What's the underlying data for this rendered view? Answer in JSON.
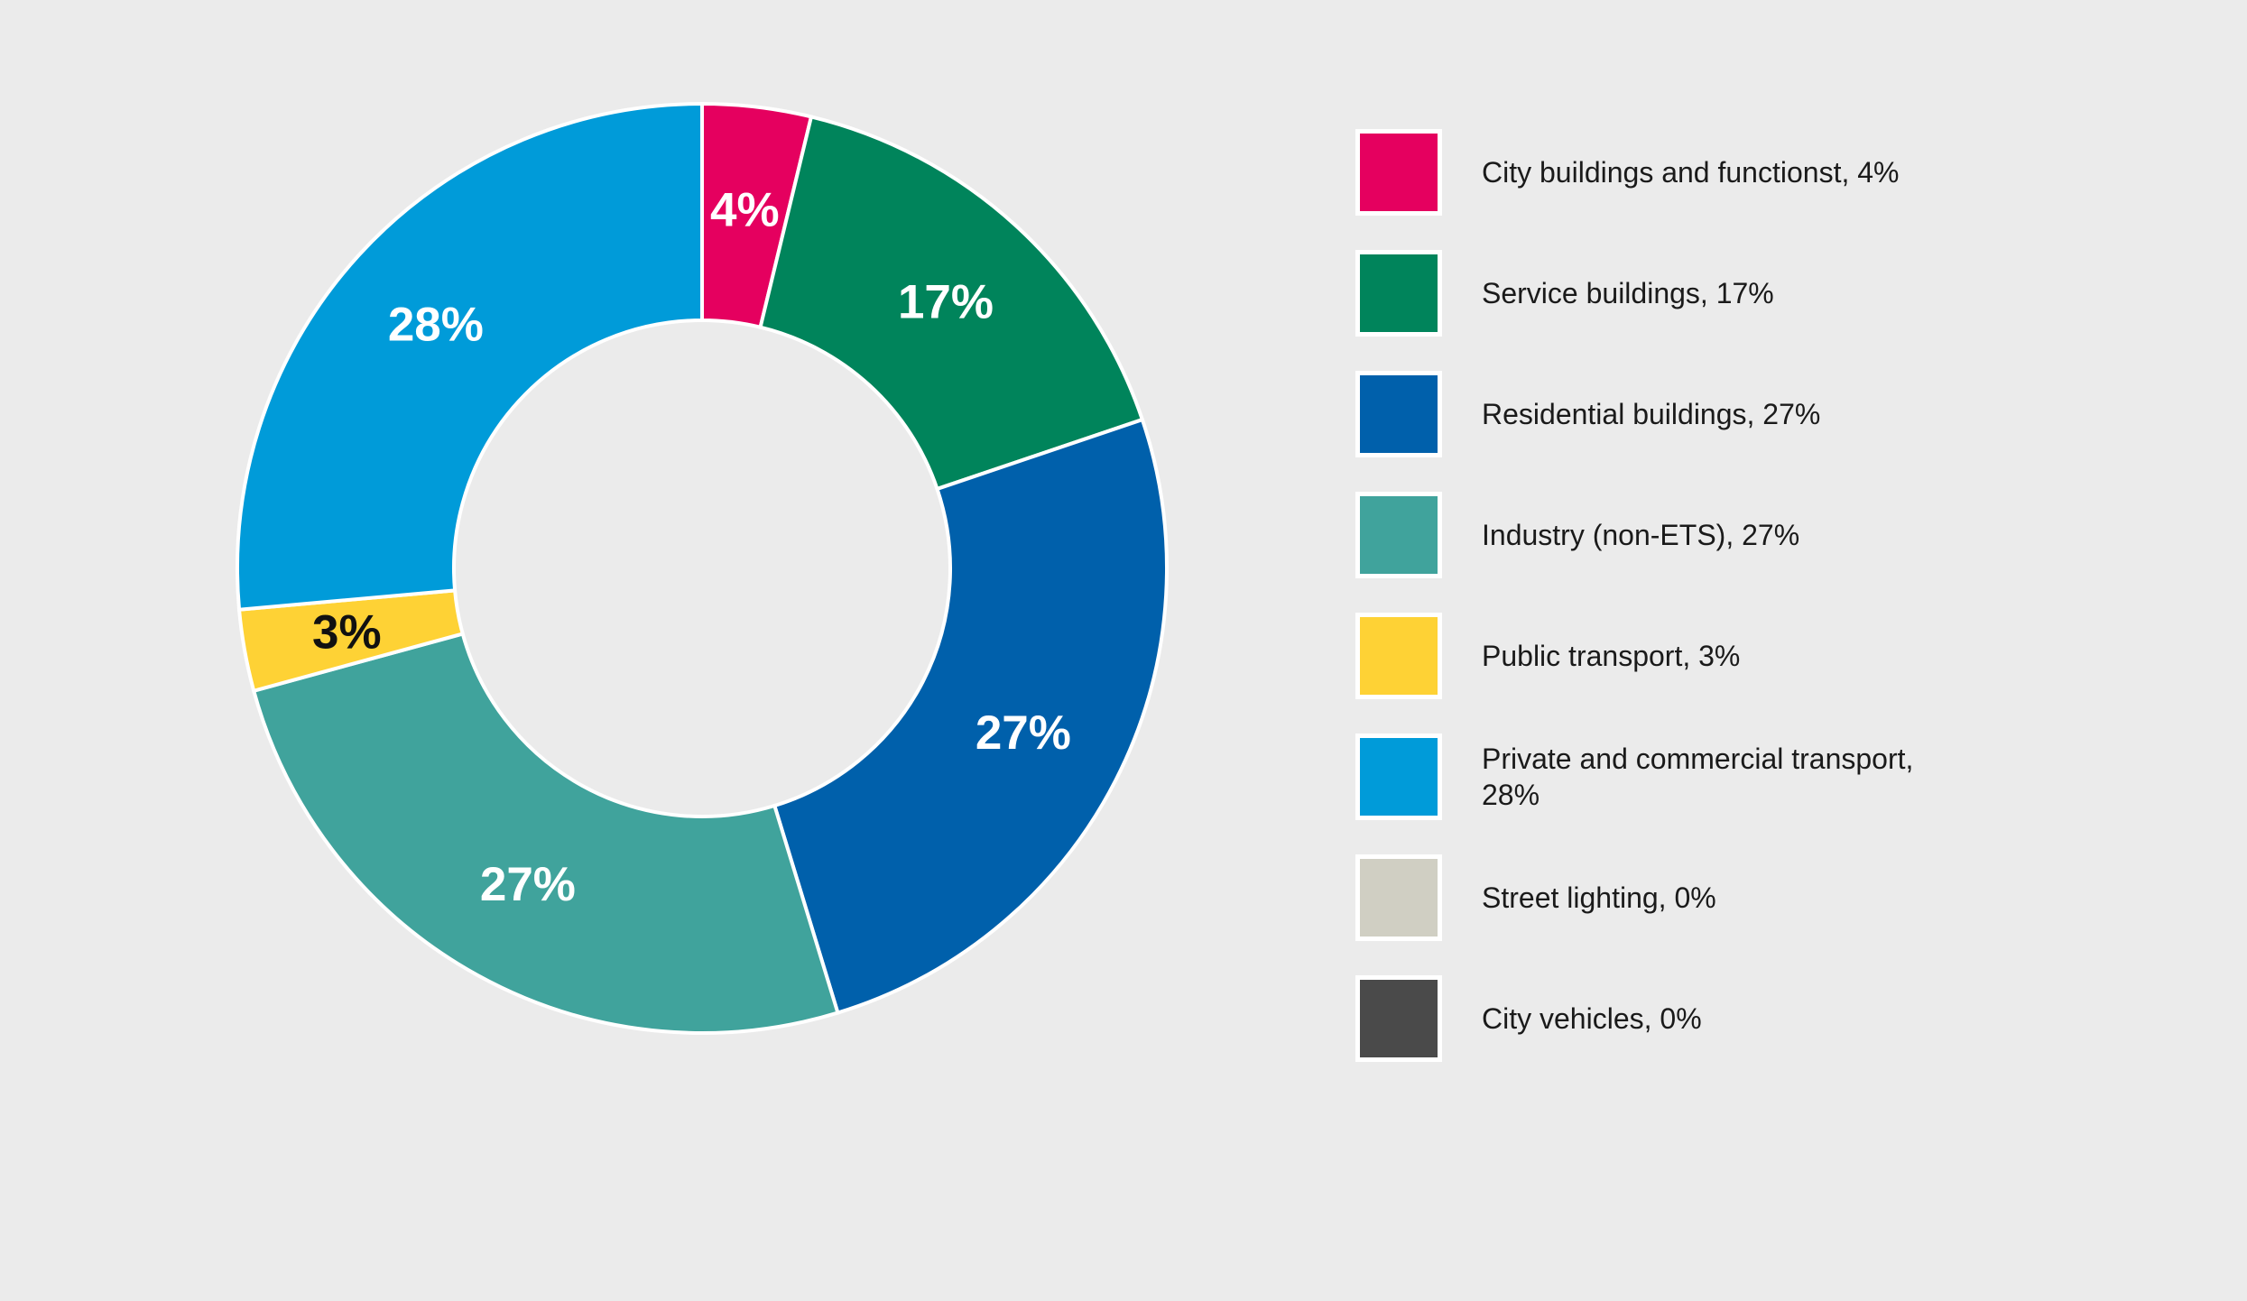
{
  "chart_data": {
    "type": "pie",
    "variant": "donut",
    "title": "",
    "categories": [
      "City buildings and functionst",
      "Service buildings",
      "Residential buildings",
      "Industry (non-ETS)",
      "Public transport",
      "Private and commercial transport",
      "Street lighting",
      "City vehicles"
    ],
    "values": [
      4,
      17,
      27,
      27,
      3,
      28,
      0,
      0
    ],
    "value_labels": [
      "4%",
      "17%",
      "27%",
      "27%",
      "3%",
      "28%",
      "",
      ""
    ],
    "colors": [
      "#e5005f",
      "#00845b",
      "#0060ab",
      "#40a39c",
      "#fed235",
      "#009bd9",
      "#d0cfc3",
      "#4a4a4a"
    ],
    "label_colors": [
      "#ffffff",
      "#ffffff",
      "#ffffff",
      "#ffffff",
      "#111111",
      "#ffffff",
      "#ffffff",
      "#ffffff"
    ],
    "legend_position": "right",
    "legend": [
      {
        "label": "City buildings and functionst, 4%",
        "color": "#e5005f"
      },
      {
        "label": "Service buildings, 17%",
        "color": "#00845b"
      },
      {
        "label": "Residential buildings, 27%",
        "color": "#0060ab"
      },
      {
        "label": "Industry (non-ETS), 27%",
        "color": "#40a39c"
      },
      {
        "label": "Public transport, 3%",
        "color": "#fed235"
      },
      {
        "label": "Private and commercial transport, 28%",
        "color": "#009bd9"
      },
      {
        "label": "Street lighting, 0%",
        "color": "#d0cfc3"
      },
      {
        "label": "City vehicles, 0%",
        "color": "#4a4a4a"
      }
    ]
  }
}
